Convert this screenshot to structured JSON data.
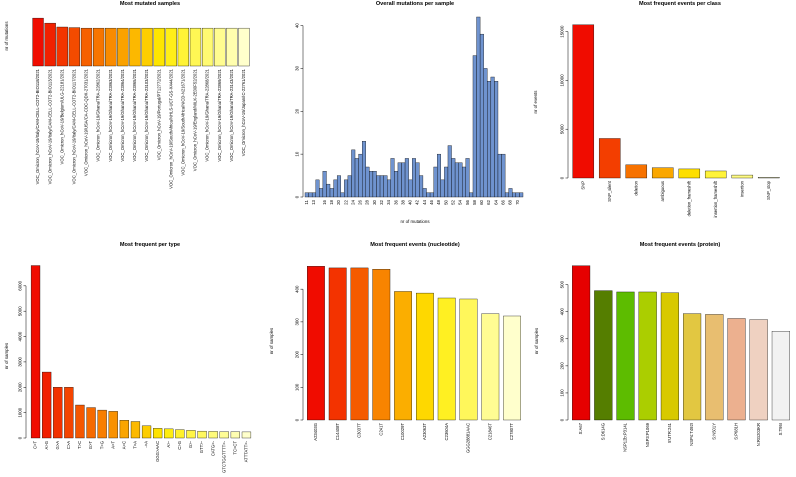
{
  "chart_data": [
    {
      "id": "p1",
      "type": "bar",
      "title": "Most mutated samples",
      "xlabel": "",
      "ylabel": "nr of mutations",
      "ylim": [
        0,
        88
      ],
      "yticks": [],
      "categories": [
        "VOC_Omicron_hCoV-19/Italy/CAM-CELL-COT2-BIO118/2021",
        "VOC_Omicron_hCoV-19/Italy/CAM-CELL-COT2-BIO113/2021",
        "VOC_Omicron_hCoV-19/Belgium/ULG-22181/2021",
        "VOC_Omicron_hCoV-19/Italy/CAM-CELL-COT2-BIO117/2021",
        "VOC_Omicron_hCoV-19/USA/CA-CDC-QDX-27031/2021",
        "VOC_Omicron_hCoV-19/Ghana/TRA-22862/2021",
        "VOC_Omicron_hCoV-19/Ghana/TRA-22863/2021",
        "VOC_Omicron_hCoV-19/Ghana/TRA-22864/2021",
        "VOC_Omicron_hCoV-19/Ghana/TRA-22865/2021",
        "VOC_Omicron_hCoV-19/Ghana/TRA-23103/2021",
        "VOC_Omicron_hCoV-19/Portugal/PT12772/2021",
        "VOC_Omicron_hCoV-19/SouthAfrica/NHLS-UCT-GS-X444/2021",
        "VOC_Omicron_hCoV-19/SouthAfrica/NICD-N21671/2021",
        "VOC_Omicron_hCoV-19/England/MILK-2E00F52/2021",
        "VOC_Omicron_hCoV-19/Ghana/TRA-22868/2021",
        "VOC_Omicron_hCoV-19/Ghana/TRA-22869/2021",
        "VOC_Omicron_hCoV-19/Ghana/TRA-23143/2021",
        "VOC_Omicron_hCoV-19/Japan/IC-22761/2021"
      ],
      "values": [
        86,
        77,
        70,
        69,
        68,
        68,
        68,
        68,
        68,
        68,
        68,
        68,
        68,
        68,
        68,
        68,
        68,
        68
      ]
    },
    {
      "id": "p2",
      "type": "bar",
      "title": "Overall mutations per sample",
      "xlabel": "nr of mutations",
      "ylabel": "",
      "ylim": [
        0,
        42
      ],
      "yticks": [
        0,
        10,
        20,
        30,
        40
      ],
      "categories": [
        "11",
        "12",
        "13",
        "14",
        "15",
        "16",
        "17",
        "18",
        "19",
        "20",
        "21",
        "22",
        "23",
        "24",
        "25",
        "26",
        "27",
        "28",
        "29",
        "30",
        "31",
        "32",
        "33",
        "34",
        "35",
        "36",
        "37",
        "38",
        "39",
        "40",
        "41",
        "42",
        "43",
        "44",
        "45",
        "46",
        "47",
        "48",
        "49",
        "50",
        "51",
        "52",
        "53",
        "54",
        "55",
        "56",
        "57",
        "58",
        "59",
        "60",
        "61",
        "62",
        "63",
        "64",
        "65",
        "66",
        "67",
        "68",
        "69",
        "70",
        "71"
      ],
      "xtick_labels": [
        "11",
        "13",
        "16",
        "18",
        "20",
        "22",
        "24",
        "26",
        "28",
        "30",
        "32",
        "34",
        "36",
        "38",
        "40",
        "42",
        "44",
        "46",
        "48",
        "50",
        "52",
        "54",
        "56",
        "58",
        "60",
        "62",
        "64",
        "66",
        "68",
        "70"
      ],
      "values": [
        1,
        1,
        1,
        4,
        2,
        6,
        3,
        2,
        4,
        5,
        1,
        4,
        5,
        11,
        9,
        10,
        13,
        7,
        6,
        6,
        5,
        5,
        5,
        4,
        9,
        6,
        8,
        8,
        9,
        4,
        9,
        8,
        5,
        2,
        1,
        1,
        7,
        10,
        4,
        7,
        12,
        9,
        8,
        8,
        7,
        9,
        1,
        33,
        42,
        38,
        30,
        27,
        28,
        27,
        10,
        10,
        1,
        2,
        1,
        1,
        1
      ],
      "color": "#6f93cf"
    },
    {
      "id": "p3",
      "type": "bar",
      "title": "Most frequent events per class",
      "xlabel": "",
      "ylabel": "nr of events",
      "ylim": [
        0,
        16500
      ],
      "yticks": [
        0,
        5000,
        10000,
        15000
      ],
      "categories": [
        "SNP",
        "SNP_silent",
        "deletion",
        "ambiguous",
        "deletion_frameshift",
        "insertion_frameshift",
        "insertion",
        "SNP_stop"
      ],
      "values": [
        15700,
        4050,
        1350,
        1050,
        930,
        720,
        300,
        80
      ]
    },
    {
      "id": "p4",
      "type": "bar",
      "title": "Most frequent per type",
      "xlabel": "",
      "ylabel": "nr of samples",
      "ylim": [
        0,
        6900
      ],
      "yticks": [
        0,
        1000,
        2000,
        3000,
        4000,
        5000,
        6000
      ],
      "categories": [
        "C>T",
        "A>G",
        "G>A",
        "C>A",
        "T>C",
        "G>T",
        "T>G",
        "A>T",
        "A>C",
        "T>A",
        "->A",
        "GGG>AAC",
        "A>-",
        "C>G",
        "G>-",
        "GTT>-",
        "CATG>-",
        "GTCTGGTTTT>-",
        "TC>CT",
        "ATTTATT>-"
      ],
      "values": [
        6800,
        2600,
        2000,
        2000,
        1300,
        1200,
        1100,
        1050,
        700,
        650,
        480,
        380,
        360,
        330,
        300,
        270,
        260,
        250,
        250,
        240
      ]
    },
    {
      "id": "p5",
      "type": "bar",
      "title": "Most frequent events (nucleotide)",
      "xlabel": "",
      "ylabel": "nr of samples",
      "ylim": [
        0,
        480
      ],
      "yticks": [
        0,
        100,
        200,
        300,
        400
      ],
      "categories": [
        "A23403G",
        "C14408T",
        "C3037T",
        "C241T",
        "C10029T",
        "A23063T",
        "C23604A",
        "GGG28881AAC",
        "C21846T",
        "C27807T"
      ],
      "values": [
        470,
        465,
        465,
        461,
        393,
        388,
        373,
        370,
        325,
        318
      ]
    },
    {
      "id": "p6",
      "type": "bar",
      "title": "Most frequent events (protein)",
      "xlabel": "",
      "ylabel": "nr of samples",
      "ylim": [
        0,
        580
      ],
      "yticks": [
        0,
        100,
        200,
        300,
        400,
        500
      ],
      "categories": [
        "S:A67",
        "S:D614G",
        "NSP12b:P314L",
        "NSP3:P1069",
        "5'UTR:241",
        "NSP4:T492I",
        "S:N501Y",
        "S:P681H",
        "N:RG203KR",
        "S:T95I"
      ],
      "values": [
        570,
        478,
        473,
        473,
        470,
        393,
        390,
        375,
        371,
        328
      ]
    }
  ]
}
